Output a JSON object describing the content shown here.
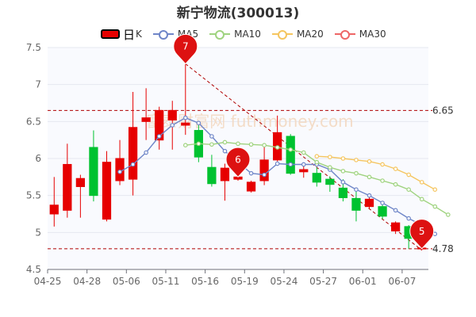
{
  "title": "新宁物流(300013)",
  "legend": {
    "k_big": "日",
    "k_small": "K",
    "ma5": "MA5",
    "ma10": "MA10",
    "ma20": "MA20",
    "ma30": "MA30"
  },
  "watermark": "富泰财富网 futhmoney.com",
  "colors": {
    "up": "#e60000",
    "down": "#00c230",
    "ma5": "#6f86c8",
    "ma10": "#9fd37f",
    "ma20": "#f5c55f",
    "ma30": "#ee6666",
    "markline": "#b00000"
  },
  "chart_data": {
    "type": "candlestick",
    "title": "新宁物流(300013)",
    "ylim": [
      4.5,
      7.5
    ],
    "y_ticks": [
      "4.5",
      "5",
      "5.5",
      "6",
      "6.5",
      "7",
      "7.5"
    ],
    "x_ticks": [
      "04-25",
      "04-28",
      "05-06",
      "05-11",
      "05-16",
      "05-19",
      "05-24",
      "05-27",
      "06-01",
      "06-07"
    ],
    "candles": [
      {
        "o": 5.25,
        "c": 5.37,
        "h": 5.75,
        "l": 5.08
      },
      {
        "o": 5.3,
        "c": 5.92,
        "h": 6.2,
        "l": 5.2
      },
      {
        "o": 5.62,
        "c": 5.73,
        "h": 5.78,
        "l": 5.2
      },
      {
        "o": 6.15,
        "c": 5.5,
        "h": 6.38,
        "l": 5.42
      },
      {
        "o": 5.18,
        "c": 5.95,
        "h": 6.1,
        "l": 5.15
      },
      {
        "o": 5.7,
        "c": 6.0,
        "h": 6.25,
        "l": 5.64
      },
      {
        "o": 5.72,
        "c": 6.42,
        "h": 6.9,
        "l": 5.5
      },
      {
        "o": 6.5,
        "c": 6.55,
        "h": 6.95,
        "l": 6.25
      },
      {
        "o": 6.25,
        "c": 6.65,
        "h": 6.7,
        "l": 6.12
      },
      {
        "o": 6.52,
        "c": 6.65,
        "h": 6.78,
        "l": 6.12
      },
      {
        "o": 6.45,
        "c": 6.48,
        "h": 7.28,
        "l": 6.32
      },
      {
        "o": 6.38,
        "c": 6.02,
        "h": 6.45,
        "l": 5.95
      },
      {
        "o": 5.88,
        "c": 5.66,
        "h": 6.05,
        "l": 5.62
      },
      {
        "o": 5.7,
        "c": 5.87,
        "h": 5.93,
        "l": 5.43
      },
      {
        "o": 5.72,
        "c": 5.75,
        "h": 5.78,
        "l": 5.7
      },
      {
        "o": 5.56,
        "c": 5.68,
        "h": 5.7,
        "l": 5.54
      },
      {
        "o": 5.7,
        "c": 5.98,
        "h": 6.2,
        "l": 5.64
      },
      {
        "o": 5.98,
        "c": 6.35,
        "h": 6.58,
        "l": 5.96
      },
      {
        "o": 6.3,
        "c": 5.8,
        "h": 6.33,
        "l": 5.78
      },
      {
        "o": 5.82,
        "c": 5.85,
        "h": 5.92,
        "l": 5.74
      },
      {
        "o": 5.8,
        "c": 5.68,
        "h": 5.88,
        "l": 5.62
      },
      {
        "o": 5.72,
        "c": 5.65,
        "h": 5.76,
        "l": 5.55
      },
      {
        "o": 5.6,
        "c": 5.47,
        "h": 5.72,
        "l": 5.42
      },
      {
        "o": 5.46,
        "c": 5.3,
        "h": 5.6,
        "l": 5.15
      },
      {
        "o": 5.35,
        "c": 5.45,
        "h": 5.48,
        "l": 5.32
      },
      {
        "o": 5.35,
        "c": 5.22,
        "h": 5.4,
        "l": 5.18
      },
      {
        "o": 5.02,
        "c": 5.13,
        "h": 5.15,
        "l": 4.98
      },
      {
        "o": 5.08,
        "c": 4.92,
        "h": 5.1,
        "l": 4.78
      },
      {
        "o": 4.78,
        "c": 4.79,
        "h": 4.8,
        "l": 4.76
      }
    ],
    "series": [
      {
        "name": "MA5",
        "start": 5,
        "values": [
          5.82,
          5.92,
          6.08,
          6.3,
          6.45,
          6.55,
          6.48,
          6.3,
          6.1,
          5.95,
          5.8,
          5.78,
          5.93,
          5.92,
          5.92,
          5.92,
          5.85,
          5.68,
          5.58,
          5.5,
          5.4,
          5.3,
          5.19,
          5.1,
          4.98
        ]
      },
      {
        "name": "MA10",
        "start": 10,
        "values": [
          6.18,
          6.2,
          6.19,
          6.22,
          6.2,
          6.19,
          6.18,
          6.15,
          6.12,
          6.08,
          5.95,
          5.88,
          5.83,
          5.8,
          5.75,
          5.7,
          5.65,
          5.58,
          5.45,
          5.35,
          5.24
        ]
      },
      {
        "name": "MA20",
        "start": 20,
        "values": [
          6.03,
          6.02,
          6.0,
          5.98,
          5.96,
          5.92,
          5.86,
          5.78,
          5.68,
          5.58
        ]
      }
    ],
    "reference_lines": [
      {
        "label": "6.65",
        "value": 6.65
      },
      {
        "label": "4.78",
        "value": 4.78
      }
    ],
    "trend_line": {
      "from_index": 10,
      "from_value": 7.28,
      "to_index": 28,
      "to_value": 4.76
    },
    "markers": [
      {
        "label": "7",
        "index": 10,
        "value": 7.28
      },
      {
        "label": "6",
        "index": 14,
        "value": 5.75
      },
      {
        "label": "5",
        "index": 28,
        "value": 4.78
      }
    ]
  }
}
